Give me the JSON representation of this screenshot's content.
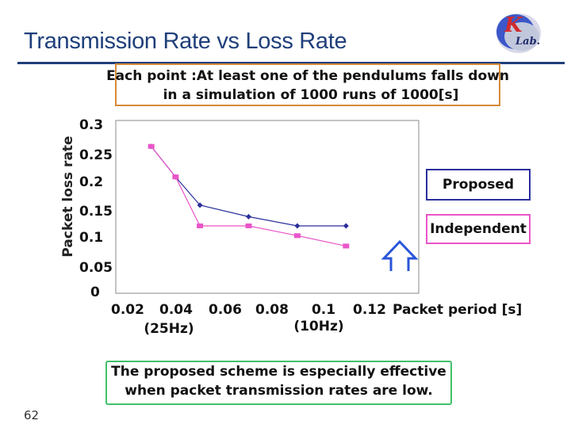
{
  "slide": {
    "title": "Transmission Rate vs Loss Rate",
    "page_number": "62",
    "note_line1": "Each point :At least one of the pendulums falls down",
    "note_line2": "in a simulation of 1000 runs of 1000[s]",
    "conclusion_line1": "The proposed scheme is especially effective",
    "conclusion_line2": "when packet transmission rates are low.",
    "logo_letters": [
      "K",
      "Lab."
    ],
    "colors": {
      "title": "#1f3f7a",
      "note_border": "#d58a37",
      "conclusion_border": "#41c06a",
      "arrow": "#2a55d8"
    }
  },
  "chart_data": {
    "type": "line",
    "ylabel": "Packet loss rate",
    "xlabel": "Packet period [s]",
    "y_ticks": [
      "0",
      "0.05",
      "0.1",
      "0.15",
      "0.2",
      "0.25",
      "0.3"
    ],
    "x_ticks": [
      "0.02",
      "0.04",
      "0.06",
      "0.08",
      "0.1",
      "0.12"
    ],
    "x_annotations": [
      {
        "label": "(25Hz)",
        "x": 0.04
      },
      {
        "label": "(10Hz)",
        "x": 0.1
      }
    ],
    "ylim": [
      0,
      0.3
    ],
    "xlim": [
      0.02,
      0.12
    ],
    "grid": false,
    "series": [
      {
        "name": "Proposed",
        "color": "#2a2f9c",
        "marker": "diamond",
        "x": [
          0.03,
          0.04,
          0.05,
          0.07,
          0.09,
          0.11
        ],
        "values": [
          0.255,
          0.202,
          0.153,
          0.133,
          0.117,
          0.117
        ]
      },
      {
        "name": "Independent",
        "color": "#ea55c8",
        "marker": "square",
        "x": [
          0.03,
          0.04,
          0.05,
          0.07,
          0.09,
          0.11
        ],
        "values": [
          0.255,
          0.202,
          0.117,
          0.117,
          0.1,
          0.082
        ]
      }
    ]
  }
}
